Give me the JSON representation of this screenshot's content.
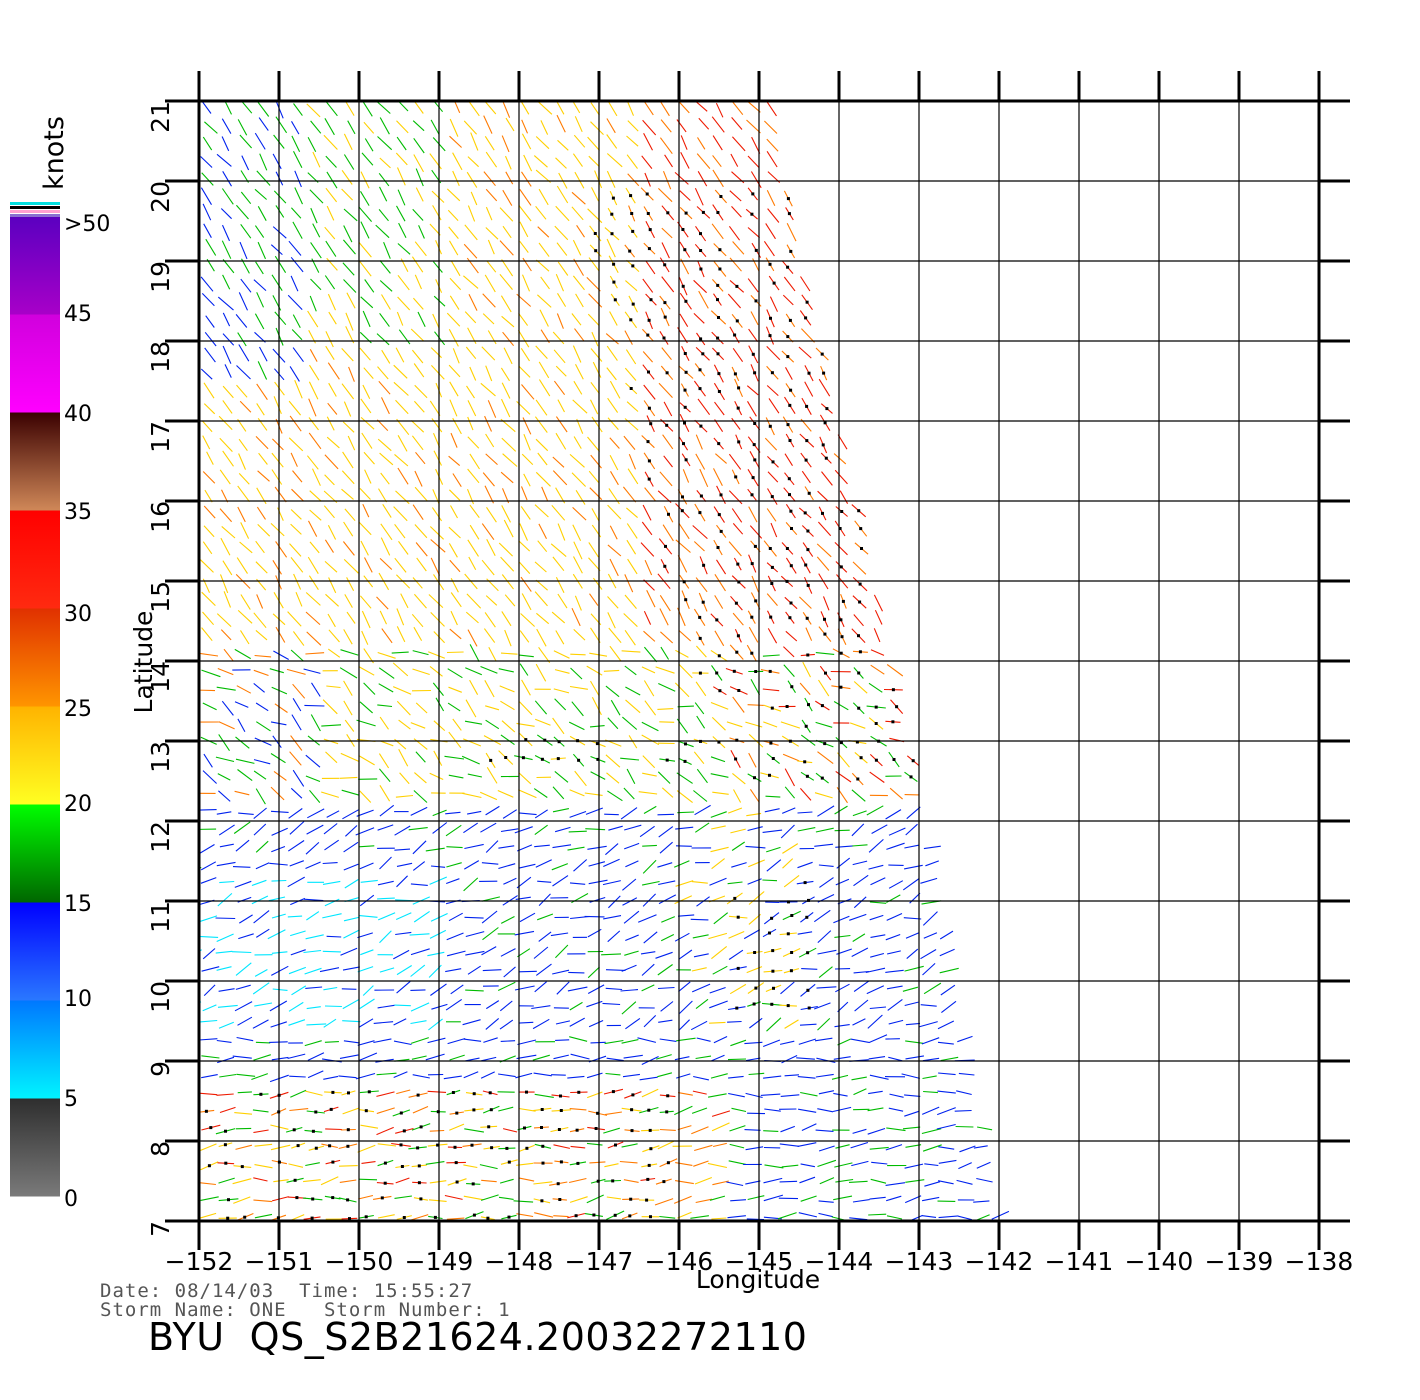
{
  "map": {
    "lon_ticks": [
      "-152",
      "-151",
      "-150",
      "-149",
      "-148",
      "-147",
      "-146",
      "-145",
      "-144",
      "-143",
      "-142",
      "-141",
      "-140",
      "-139",
      "-138"
    ],
    "lat_ticks": [
      "7",
      "8",
      "9",
      "10",
      "11",
      "12",
      "13",
      "14",
      "15",
      "16",
      "17",
      "18",
      "19",
      "20",
      "21"
    ],
    "lon_range": [
      -152,
      -138
    ],
    "lat_range": [
      7,
      21
    ],
    "xlabel": "Longitude",
    "ylabel": "Latitude"
  },
  "colorbar": {
    "units": "knots",
    "ticks": [
      "0",
      "5",
      "10",
      "15",
      "20",
      "25",
      "30",
      "35",
      "40",
      "45",
      ">50"
    ],
    "bands": [
      {
        "from": 0,
        "to": 5,
        "colors": [
          "#7a7a7a",
          "#2e2e2e"
        ]
      },
      {
        "from": 5,
        "to": 10,
        "colors": [
          "#00f4ff",
          "#0077ff"
        ]
      },
      {
        "from": 10,
        "to": 15,
        "colors": [
          "#2a78ff",
          "#0000ff"
        ]
      },
      {
        "from": 15,
        "to": 20,
        "colors": [
          "#006600",
          "#00ff00"
        ]
      },
      {
        "from": 20,
        "to": 25,
        "colors": [
          "#ffff22",
          "#ffb300"
        ]
      },
      {
        "from": 25,
        "to": 30,
        "colors": [
          "#ff9500",
          "#e03000"
        ]
      },
      {
        "from": 30,
        "to": 35,
        "colors": [
          "#ff2a10",
          "#ff0000"
        ]
      },
      {
        "from": 35,
        "to": 40,
        "colors": [
          "#d08858",
          "#3a0000"
        ]
      },
      {
        "from": 40,
        "to": 45,
        "colors": [
          "#ff00ff",
          "#d000dd"
        ]
      },
      {
        "from": 45,
        "to": 50,
        "colors": [
          "#a800c8",
          "#5a00c0"
        ]
      }
    ]
  },
  "wind_colors": {
    "calm": "#777777",
    "light": "#00e6ff",
    "moderate": "#0022ee",
    "fresh": "#00bb00",
    "strong": "#ffd000",
    "gale": "#ff7a00",
    "storm": "#ee1a00",
    "flag": "#000000"
  },
  "info": {
    "date_label": "Date:",
    "date": "08/14/03",
    "time_label": "Time:",
    "time": "15:55:27",
    "storm_name_label": "Storm Name:",
    "storm_name": "ONE",
    "storm_number_label": "Storm Number:",
    "storm_number": "1",
    "file_id": "BYU  QS_S2B21624.20032272110"
  }
}
